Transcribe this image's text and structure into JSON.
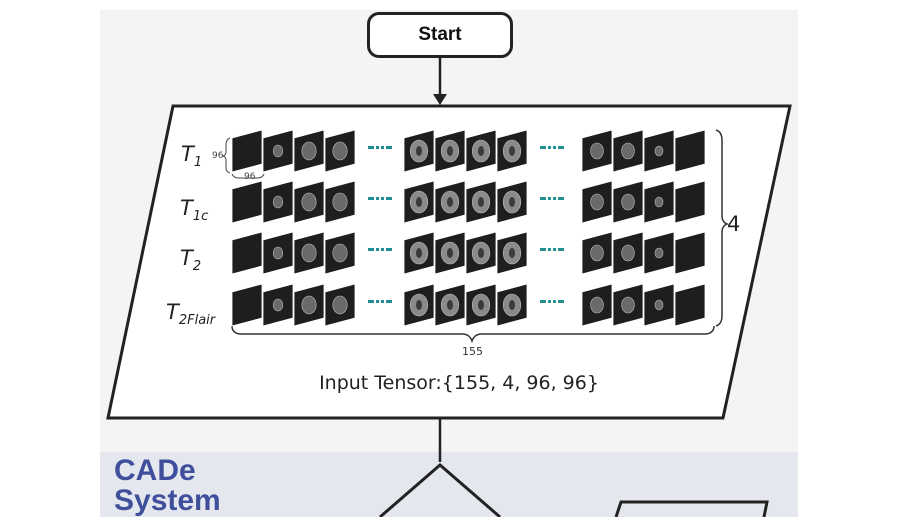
{
  "start_label": "Start",
  "modalities": [
    {
      "base": "T",
      "sub": "1"
    },
    {
      "base": "T",
      "sub": "1c"
    },
    {
      "base": "T",
      "sub": "2"
    },
    {
      "base": "T",
      "sub": "2Flair"
    }
  ],
  "dim_height": "96",
  "dim_width": "96",
  "channels_label": "4",
  "slices_label": "155",
  "tensor_caption": "Input Tensor:{155, 4, 96, 96}",
  "section_title_line1": "CADe",
  "section_title_line2": "System",
  "colors": {
    "accent_blue": "#3f4f9c",
    "teal_dots": "#1f8f8f",
    "slice_dark": "#1e1e1e",
    "panel_bg": "#f4f4f5",
    "section_bg": "#e5e7ef"
  }
}
